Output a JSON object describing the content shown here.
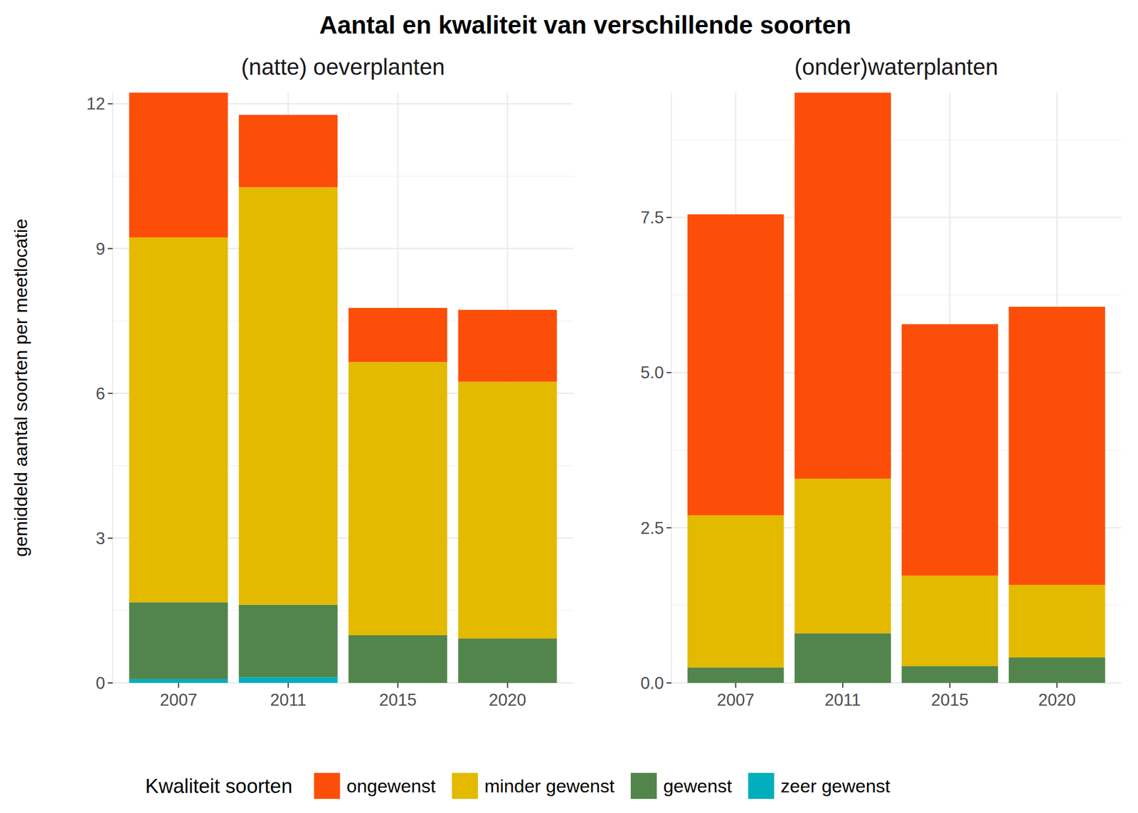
{
  "title": "Aantal en kwaliteit van verschillende soorten",
  "y_label": "gemiddeld aantal soorten per meetlocatie",
  "legend_title": "Kwaliteit soorten",
  "chart_data": [
    {
      "type": "bar",
      "title": "(natte) oeverplanten",
      "categories": [
        "2007",
        "2011",
        "2015",
        "2020"
      ],
      "series": [
        {
          "name": "zeer gewenst",
          "color": "#00AFBB",
          "values": [
            0.08,
            0.12,
            0,
            0
          ]
        },
        {
          "name": "gewenst",
          "color": "#52854C",
          "values": [
            1.59,
            1.5,
            0.99,
            0.92
          ]
        },
        {
          "name": "minder gewenst",
          "color": "#E3BA00",
          "values": [
            7.56,
            8.65,
            5.66,
            5.32
          ]
        },
        {
          "name": "ongewenst",
          "color": "#FC4E08",
          "values": [
            3.0,
            1.5,
            1.12,
            1.49
          ]
        }
      ],
      "ylim": [
        0,
        12.23
      ],
      "yticks": [
        0,
        3,
        6,
        9,
        12
      ],
      "stacked": true,
      "grid": true,
      "legend": "bottom"
    },
    {
      "type": "bar",
      "title": "(onder)waterplanten",
      "categories": [
        "2007",
        "2011",
        "2015",
        "2020"
      ],
      "series": [
        {
          "name": "zeer gewenst",
          "color": "#00AFBB",
          "values": [
            0,
            0,
            0,
            0
          ]
        },
        {
          "name": "gewenst",
          "color": "#52854C",
          "values": [
            0.25,
            0.8,
            0.27,
            0.41
          ]
        },
        {
          "name": "minder gewenst",
          "color": "#E3BA00",
          "values": [
            2.45,
            2.49,
            1.46,
            1.17
          ]
        },
        {
          "name": "ongewenst",
          "color": "#FC4E08",
          "values": [
            4.85,
            6.22,
            4.05,
            4.48
          ]
        }
      ],
      "ylim": [
        0,
        9.51
      ],
      "yticks": [
        {
          "value": 0,
          "label": "0.0"
        },
        2.5,
        {
          "value": 5,
          "label": "5.0"
        },
        7.5
      ],
      "stacked": true,
      "grid": true,
      "legend": "bottom"
    }
  ]
}
